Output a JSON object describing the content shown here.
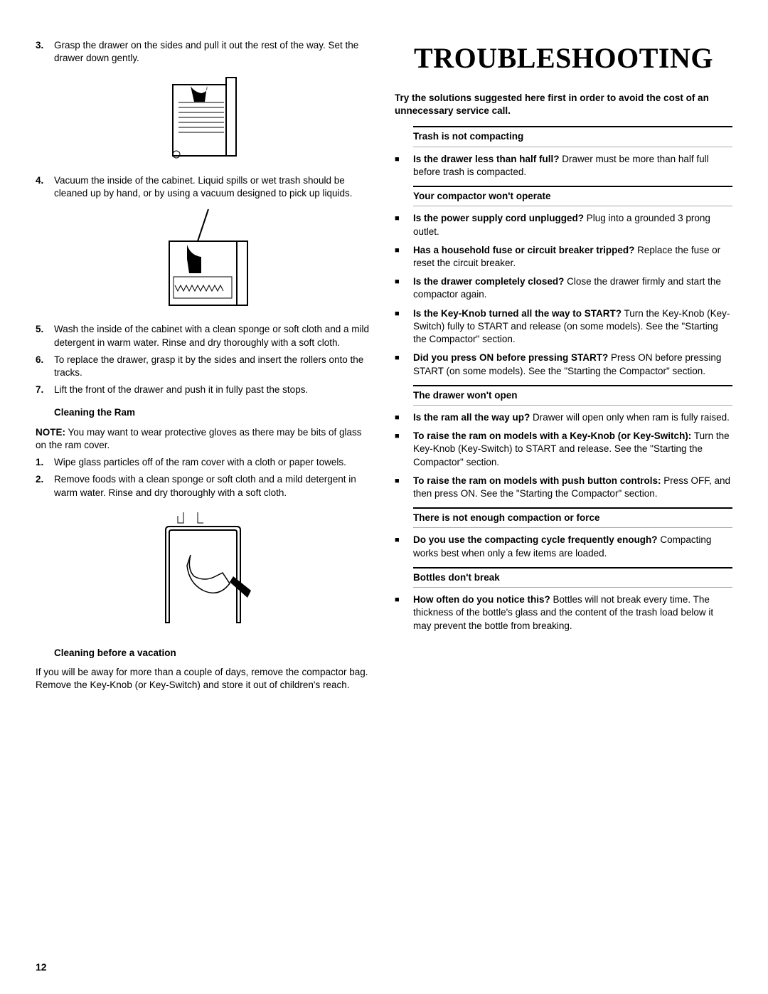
{
  "pageNumber": "12",
  "left": {
    "steps_a": [
      {
        "n": "3.",
        "t": "Grasp the drawer on the sides and pull it out the rest of the way. Set the drawer down gently."
      }
    ],
    "steps_b": [
      {
        "n": "4.",
        "t": "Vacuum the inside of the cabinet. Liquid spills or wet trash should be cleaned up by hand, or by using a vacuum designed to pick up liquids."
      }
    ],
    "steps_c": [
      {
        "n": "5.",
        "t": "Wash the inside of the cabinet with a clean sponge or soft cloth and a mild detergent in warm water. Rinse and dry thoroughly with a soft cloth."
      },
      {
        "n": "6.",
        "t": "To replace the drawer, grasp it by the sides and insert the rollers onto the tracks."
      },
      {
        "n": "7.",
        "t": "Lift the front of the drawer and push it in fully past the stops."
      }
    ],
    "ramHeading": "Cleaning the Ram",
    "noteBold": "NOTE:",
    "noteText": " You may want to wear protective gloves as there may be bits of glass on the ram cover.",
    "steps_d": [
      {
        "n": "1.",
        "t": "Wipe glass particles off of the ram cover with a cloth or paper towels."
      },
      {
        "n": "2.",
        "t": "Remove foods with a clean sponge or soft cloth and a mild detergent in warm water. Rinse and dry thoroughly with a soft cloth."
      }
    ],
    "vacHeading": "Cleaning before a vacation",
    "vacText": "If you will be away for more than a couple of days, remove the compactor bag. Remove the Key-Knob (or Key-Switch) and store it out of children's reach."
  },
  "right": {
    "title": "TROUBLESHOOTING",
    "intro": "Try the solutions suggested here first in order to avoid the cost of an unnecessary service call.",
    "sections": [
      {
        "title": "Trash is not compacting",
        "items": [
          {
            "b": "Is the drawer less than half full?",
            "t": " Drawer must be more than half full before trash is compacted."
          }
        ]
      },
      {
        "title": "Your compactor won't operate",
        "items": [
          {
            "b": "Is the power supply cord unplugged?",
            "t": " Plug into a grounded 3 prong outlet."
          },
          {
            "b": "Has a household fuse or circuit breaker tripped?",
            "t": " Replace the fuse or reset the circuit breaker."
          },
          {
            "b": "Is the drawer completely closed?",
            "t": " Close the drawer firmly and start the compactor again."
          },
          {
            "b": "Is the Key-Knob turned all the way to START?",
            "t": " Turn the Key-Knob (Key-Switch) fully to START and release (on some models). See the \"Starting the Compactor\" section."
          },
          {
            "b": "Did you press ON before pressing START?",
            "t": " Press ON before pressing START (on some models). See the \"Starting the Compactor\" section."
          }
        ]
      },
      {
        "title": "The drawer won't open",
        "items": [
          {
            "b": "Is the ram all the way up?",
            "t": " Drawer will open only when ram is fully raised."
          },
          {
            "b": "To raise the ram on models with a Key-Knob (or Key-Switch):",
            "t": " Turn the Key-Knob (Key-Switch) to START and release. See the \"Starting the Compactor\" section."
          },
          {
            "b": "To raise the ram on models with push button controls:",
            "t": " Press OFF, and then press ON. See the \"Starting the Compactor\" section."
          }
        ]
      },
      {
        "title": "There is not enough compaction or force",
        "items": [
          {
            "b": "Do you use the compacting cycle frequently enough?",
            "t": " Compacting works best when only a few items are loaded."
          }
        ]
      },
      {
        "title": "Bottles don't break",
        "items": [
          {
            "b": "How often do you notice this?",
            "t": " Bottles will not break every time. The thickness of the bottle's glass and the content of the trash load below it may prevent the bottle from breaking."
          }
        ]
      }
    ]
  }
}
